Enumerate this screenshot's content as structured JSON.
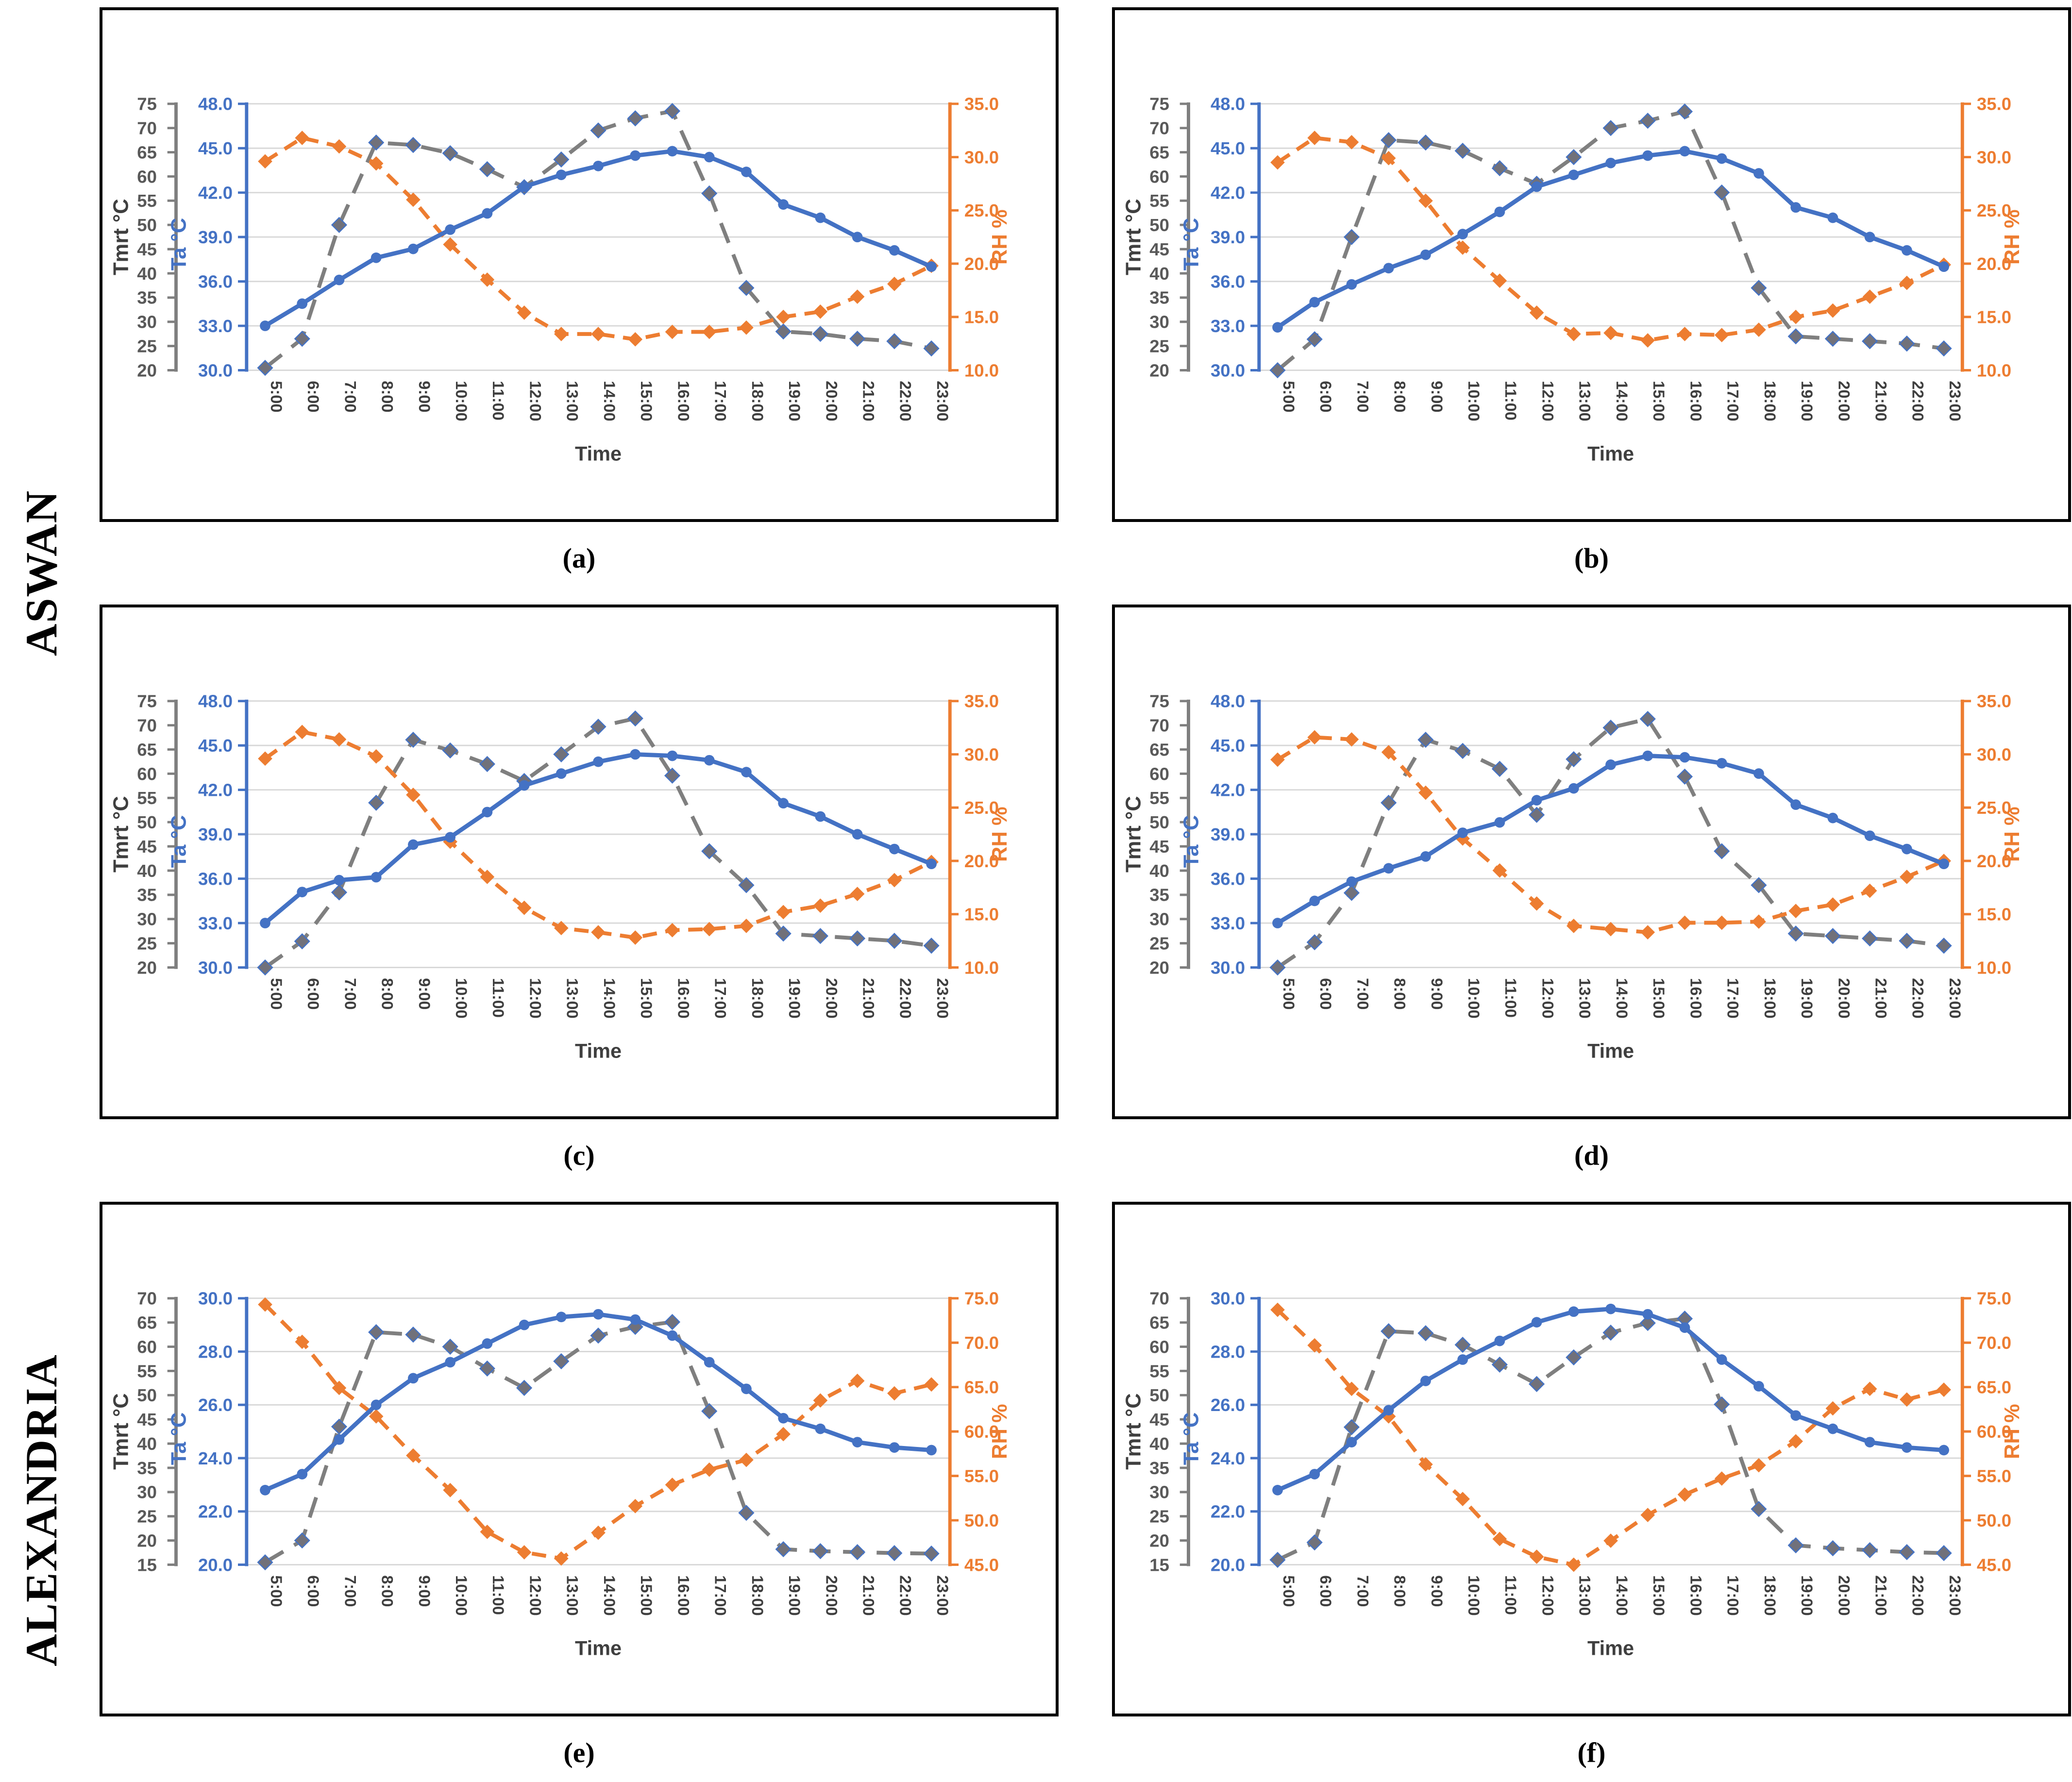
{
  "figure": {
    "row_labels": [
      "ASWAN",
      "ALEXANDRIA"
    ],
    "captions": [
      "(a)",
      "(b)",
      "(c)",
      "(d)",
      "(e)",
      "(f)"
    ]
  },
  "axis_titles": {
    "left": "Tmrt °C",
    "left2": "Ta °C",
    "right": "RH %",
    "x": "Time"
  },
  "colors": {
    "ta_blue": "#4472C4",
    "rh_orange": "#ED7D31",
    "tmrt_gray": "#7F7F7F",
    "tmrt_marker_fill": "#71717A",
    "grid": "#D9D9D9",
    "tick_dark": "#595959",
    "text_dark": "#3F3F3F",
    "border": "#000000"
  },
  "chart_data": [
    {
      "id": "a",
      "city": "ASWAN",
      "caption": "(a)",
      "type": "line",
      "grid": "horizontal",
      "legend": "none",
      "categories": [
        "5:00",
        "6:00",
        "7:00",
        "8:00",
        "9:00",
        "10:00",
        "11:00",
        "12:00",
        "13:00",
        "14:00",
        "15:00",
        "16:00",
        "17:00",
        "18:00",
        "19:00",
        "20:00",
        "21:00",
        "22:00",
        "23:00"
      ],
      "axes": {
        "tmrt": {
          "label": "Tmrt °C",
          "min": 20,
          "max": 75,
          "step": 5,
          "decimals": 0
        },
        "ta": {
          "label": "Ta °C",
          "min": 30,
          "max": 48,
          "step": 3,
          "decimals": 1
        },
        "rh": {
          "label": "RH %",
          "min": 10,
          "max": 35,
          "step": 5,
          "decimals": 1
        }
      },
      "series": [
        {
          "name": "Tmrt",
          "axis": "tmrt",
          "marker": "diamond",
          "dashed": true,
          "color": "#7F7F7F",
          "values": [
            20.5,
            26.5,
            50,
            67,
            66.5,
            64.8,
            61.5,
            57.8,
            63.5,
            69.5,
            72,
            73.5,
            56.5,
            37,
            28,
            27.5,
            26.5,
            26,
            24.5
          ]
        },
        {
          "name": "Ta",
          "axis": "ta",
          "marker": "circle",
          "dashed": false,
          "color": "#4472C4",
          "values": [
            33,
            34.5,
            36.1,
            37.6,
            38.2,
            39.5,
            40.6,
            42.4,
            43.2,
            43.8,
            44.5,
            44.8,
            44.4,
            43.4,
            41.2,
            40.3,
            39,
            38.1,
            37
          ]
        },
        {
          "name": "RH",
          "axis": "rh",
          "marker": "diamond",
          "dashed": true,
          "color": "#ED7D31",
          "values": [
            29.6,
            31.8,
            31,
            29.4,
            26,
            21.8,
            18.5,
            15.4,
            13.4,
            13.4,
            12.9,
            13.6,
            13.6,
            14,
            15,
            15.5,
            16.9,
            18.1,
            19.8
          ]
        }
      ]
    },
    {
      "id": "b",
      "city": "ASWAN",
      "caption": "(b)",
      "type": "line",
      "grid": "horizontal",
      "legend": "none",
      "categories": [
        "5:00",
        "6:00",
        "7:00",
        "8:00",
        "9:00",
        "10:00",
        "11:00",
        "12:00",
        "13:00",
        "14:00",
        "15:00",
        "16:00",
        "17:00",
        "18:00",
        "19:00",
        "20:00",
        "21:00",
        "22:00",
        "23:00"
      ],
      "axes": {
        "tmrt": {
          "label": "Tmrt °C",
          "min": 20,
          "max": 75,
          "step": 5,
          "decimals": 0
        },
        "ta": {
          "label": "Ta °C",
          "min": 30,
          "max": 48,
          "step": 3,
          "decimals": 1
        },
        "rh": {
          "label": "RH %",
          "min": 10,
          "max": 35,
          "step": 5,
          "decimals": 1
        }
      },
      "series": [
        {
          "name": "Tmrt",
          "axis": "tmrt",
          "marker": "diamond",
          "dashed": true,
          "color": "#7F7F7F",
          "values": [
            20,
            26.4,
            47.5,
            67.5,
            67,
            65.3,
            61.7,
            58.5,
            64,
            70,
            71.5,
            73.4,
            56.7,
            37,
            27,
            26.5,
            26,
            25.5,
            24.5
          ]
        },
        {
          "name": "Ta",
          "axis": "ta",
          "marker": "circle",
          "dashed": false,
          "color": "#4472C4",
          "values": [
            32.9,
            34.6,
            35.8,
            36.9,
            37.8,
            39.2,
            40.7,
            42.4,
            43.2,
            44,
            44.5,
            44.8,
            44.3,
            43.3,
            41,
            40.3,
            39,
            38.1,
            37
          ]
        },
        {
          "name": "RH",
          "axis": "rh",
          "marker": "diamond",
          "dashed": true,
          "color": "#ED7D31",
          "values": [
            29.5,
            31.8,
            31.4,
            29.9,
            25.9,
            21.5,
            18.4,
            15.4,
            13.4,
            13.5,
            12.8,
            13.4,
            13.3,
            13.8,
            15,
            15.6,
            16.9,
            18.2,
            19.9
          ]
        }
      ]
    },
    {
      "id": "c",
      "city": "ASWAN",
      "caption": "(c)",
      "type": "line",
      "grid": "horizontal",
      "legend": "none",
      "categories": [
        "5:00",
        "6:00",
        "7:00",
        "8:00",
        "9:00",
        "10:00",
        "11:00",
        "12:00",
        "13:00",
        "14:00",
        "15:00",
        "16:00",
        "17:00",
        "18:00",
        "19:00",
        "20:00",
        "21:00",
        "22:00",
        "23:00"
      ],
      "axes": {
        "tmrt": {
          "label": "Tmrt °C",
          "min": 20,
          "max": 75,
          "step": 5,
          "decimals": 0
        },
        "ta": {
          "label": "Ta °C",
          "min": 30,
          "max": 48,
          "step": 3,
          "decimals": 1
        },
        "rh": {
          "label": "RH %",
          "min": 10,
          "max": 35,
          "step": 5,
          "decimals": 1
        }
      },
      "series": [
        {
          "name": "Tmrt",
          "axis": "tmrt",
          "marker": "diamond",
          "dashed": true,
          "color": "#7F7F7F",
          "values": [
            20,
            25.4,
            35.5,
            54,
            67,
            64.8,
            62,
            58.5,
            64,
            69.7,
            71.4,
            59.6,
            44,
            37,
            27,
            26.5,
            26,
            25.5,
            24.5
          ]
        },
        {
          "name": "Ta",
          "axis": "ta",
          "marker": "circle",
          "dashed": false,
          "color": "#4472C4",
          "values": [
            33,
            35.1,
            35.9,
            36.1,
            38.3,
            38.8,
            40.5,
            42.3,
            43.1,
            43.9,
            44.4,
            44.3,
            44,
            43.2,
            41.1,
            40.2,
            39,
            38,
            37
          ]
        },
        {
          "name": "RH",
          "axis": "rh",
          "marker": "diamond",
          "dashed": true,
          "color": "#ED7D31",
          "values": [
            29.6,
            32.1,
            31.4,
            29.8,
            26.2,
            21.8,
            18.5,
            15.6,
            13.7,
            13.3,
            12.8,
            13.5,
            13.6,
            13.9,
            15.2,
            15.8,
            16.9,
            18.2,
            19.9
          ]
        }
      ]
    },
    {
      "id": "d",
      "city": "ASWAN",
      "caption": "(d)",
      "type": "line",
      "grid": "horizontal",
      "legend": "none",
      "categories": [
        "5:00",
        "6:00",
        "7:00",
        "8:00",
        "9:00",
        "10:00",
        "11:00",
        "12:00",
        "13:00",
        "14:00",
        "15:00",
        "16:00",
        "17:00",
        "18:00",
        "19:00",
        "20:00",
        "21:00",
        "22:00",
        "23:00"
      ],
      "axes": {
        "tmrt": {
          "label": "Tmrt °C",
          "min": 20,
          "max": 75,
          "step": 5,
          "decimals": 0
        },
        "ta": {
          "label": "Ta °C",
          "min": 30,
          "max": 48,
          "step": 3,
          "decimals": 1
        },
        "rh": {
          "label": "RH %",
          "min": 10,
          "max": 35,
          "step": 5,
          "decimals": 1
        }
      },
      "series": [
        {
          "name": "Tmrt",
          "axis": "tmrt",
          "marker": "diamond",
          "dashed": true,
          "color": "#7F7F7F",
          "values": [
            20,
            25.2,
            35.4,
            54,
            67,
            64.7,
            61,
            51.5,
            63,
            69.5,
            71.3,
            59.4,
            44,
            37,
            27,
            26.5,
            26,
            25.5,
            24.5
          ]
        },
        {
          "name": "Ta",
          "axis": "ta",
          "marker": "circle",
          "dashed": false,
          "color": "#4472C4",
          "values": [
            33,
            34.5,
            35.8,
            36.7,
            37.5,
            39.1,
            39.8,
            41.3,
            42.1,
            43.7,
            44.3,
            44.2,
            43.8,
            43.1,
            41,
            40.1,
            38.9,
            38,
            37
          ]
        },
        {
          "name": "RH",
          "axis": "rh",
          "marker": "diamond",
          "dashed": true,
          "color": "#ED7D31",
          "values": [
            29.5,
            31.6,
            31.4,
            30.2,
            26.4,
            22.1,
            19.1,
            16,
            13.9,
            13.6,
            13.3,
            14.2,
            14.2,
            14.3,
            15.3,
            15.9,
            17.2,
            18.5,
            20
          ]
        }
      ]
    },
    {
      "id": "e",
      "city": "ALEXANDRIA",
      "caption": "(e)",
      "type": "line",
      "grid": "horizontal",
      "legend": "none",
      "categories": [
        "5:00",
        "6:00",
        "7:00",
        "8:00",
        "9:00",
        "10:00",
        "11:00",
        "12:00",
        "13:00",
        "14:00",
        "15:00",
        "16:00",
        "17:00",
        "18:00",
        "19:00",
        "20:00",
        "21:00",
        "22:00",
        "23:00"
      ],
      "axes": {
        "tmrt": {
          "label": "Tmrt °C",
          "min": 15,
          "max": 70,
          "step": 5,
          "decimals": 0
        },
        "ta": {
          "label": "Ta °C",
          "min": 20,
          "max": 30,
          "step": 2,
          "decimals": 1
        },
        "rh": {
          "label": "RH %",
          "min": 45,
          "max": 75,
          "step": 5,
          "decimals": 1
        }
      },
      "series": [
        {
          "name": "Tmrt",
          "axis": "tmrt",
          "marker": "diamond",
          "dashed": true,
          "color": "#7F7F7F",
          "values": [
            15.5,
            20,
            43.5,
            63,
            62.5,
            60,
            55.5,
            51.5,
            57,
            62.3,
            64.1,
            65.1,
            46.7,
            25.7,
            18.2,
            17.8,
            17.6,
            17.4,
            17.3
          ]
        },
        {
          "name": "Ta",
          "axis": "ta",
          "marker": "circle",
          "dashed": false,
          "color": "#4472C4",
          "values": [
            22.8,
            23.4,
            24.7,
            26,
            27,
            27.6,
            28.3,
            29,
            29.3,
            29.4,
            29.2,
            28.6,
            27.6,
            26.6,
            25.5,
            25.1,
            24.6,
            24.4,
            24.3
          ]
        },
        {
          "name": "RH",
          "axis": "rh",
          "marker": "diamond",
          "dashed": true,
          "color": "#ED7D31",
          "values": [
            74.3,
            70.1,
            64.9,
            61.7,
            57.3,
            53.4,
            48.7,
            46.4,
            45.7,
            48.6,
            51.6,
            54,
            55.7,
            56.8,
            59.7,
            63.5,
            65.7,
            64.3,
            65.3
          ]
        }
      ]
    },
    {
      "id": "f",
      "city": "ALEXANDRIA",
      "caption": "(f)",
      "type": "line",
      "grid": "horizontal",
      "legend": "none",
      "categories": [
        "5:00",
        "6:00",
        "7:00",
        "8:00",
        "9:00",
        "10:00",
        "11:00",
        "12:00",
        "13:00",
        "14:00",
        "15:00",
        "16:00",
        "17:00",
        "18:00",
        "19:00",
        "20:00",
        "21:00",
        "22:00",
        "23:00"
      ],
      "axes": {
        "tmrt": {
          "label": "Tmrt °C",
          "min": 15,
          "max": 70,
          "step": 5,
          "decimals": 0
        },
        "ta": {
          "label": "Ta °C",
          "min": 20,
          "max": 30,
          "step": 2,
          "decimals": 1
        },
        "rh": {
          "label": "RH %",
          "min": 45,
          "max": 75,
          "step": 5,
          "decimals": 1
        }
      },
      "series": [
        {
          "name": "Tmrt",
          "axis": "tmrt",
          "marker": "diamond",
          "dashed": true,
          "color": "#7F7F7F",
          "values": [
            16,
            19.6,
            43.4,
            63.2,
            62.8,
            60.4,
            56.3,
            52.3,
            57.8,
            62.9,
            64.9,
            65.8,
            48.1,
            26.5,
            19,
            18.4,
            18,
            17.6,
            17.4
          ]
        },
        {
          "name": "Ta",
          "axis": "ta",
          "marker": "circle",
          "dashed": false,
          "color": "#4472C4",
          "values": [
            22.8,
            23.4,
            24.6,
            25.8,
            26.9,
            27.7,
            28.4,
            29.1,
            29.5,
            29.6,
            29.4,
            28.9,
            27.7,
            26.7,
            25.6,
            25.1,
            24.6,
            24.4,
            24.3
          ]
        },
        {
          "name": "RH",
          "axis": "rh",
          "marker": "diamond",
          "dashed": true,
          "color": "#ED7D31",
          "values": [
            73.7,
            69.7,
            64.8,
            61.7,
            56.3,
            52.4,
            47.9,
            45.9,
            45,
            47.7,
            50.6,
            52.9,
            54.7,
            56.2,
            58.9,
            62.6,
            64.8,
            63.6,
            64.7
          ]
        }
      ]
    }
  ]
}
